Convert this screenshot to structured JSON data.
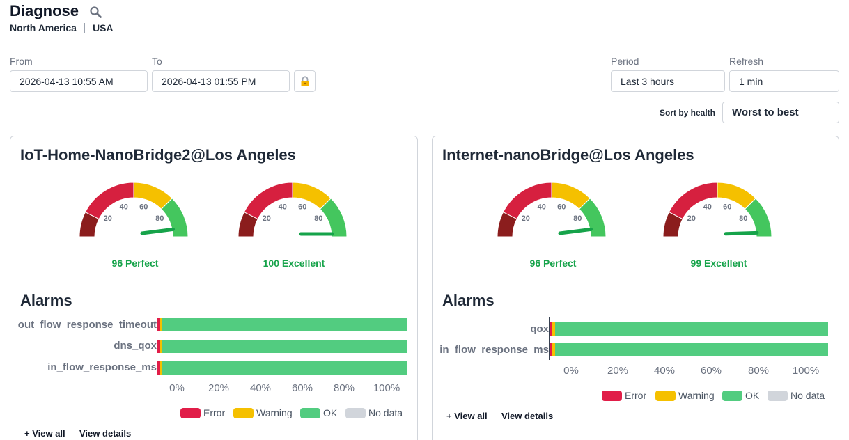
{
  "header": {
    "title": "Diagnose",
    "breadcrumb": [
      "North America",
      "USA"
    ]
  },
  "filters": {
    "from_label": "From",
    "from_value": "2026-04-13 10:55 AM",
    "to_label": "To",
    "to_value": "2026-04-13 01:55 PM",
    "period_label": "Period",
    "period_value": "Last 3 hours",
    "refresh_label": "Refresh",
    "refresh_value": "1 min",
    "sort_label": "Sort by health",
    "sort_value": "Worst to best"
  },
  "colors": {
    "error": "#e11d48",
    "warning": "#f5c000",
    "ok": "#52cc80",
    "nodata": "#d1d5db",
    "dark_red": "#8b1d1d",
    "gauge_red": "#d6203f",
    "gauge_green": "#44c65e",
    "needle": "#16a34a"
  },
  "gauge_ticks": [
    "20",
    "40",
    "60",
    "80"
  ],
  "bar_ticks": [
    "0%",
    "20%",
    "40%",
    "60%",
    "80%",
    "100%"
  ],
  "legend": [
    "Error",
    "Warning",
    "OK",
    "No data"
  ],
  "links": {
    "view_all": "+ View all",
    "view_details": "View details"
  },
  "panels": [
    {
      "title": "IoT-Home-NanoBridge2@Los Angeles",
      "gauges": [
        {
          "value": 96,
          "label": "96 Perfect"
        },
        {
          "value": 100,
          "label": "100 Excellent"
        }
      ],
      "alarms_title": "Alarms",
      "alarms": [
        {
          "name": "out_flow_response_timeout",
          "error": 1,
          "warning": 1,
          "ok": 98,
          "nodata": 0
        },
        {
          "name": "dns_qox",
          "error": 1,
          "warning": 1,
          "ok": 98,
          "nodata": 0
        },
        {
          "name": "in_flow_response_ms",
          "error": 1,
          "warning": 1,
          "ok": 98,
          "nodata": 0
        }
      ]
    },
    {
      "title": "Internet-nanoBridge@Los Angeles",
      "gauges": [
        {
          "value": 96,
          "label": "96 Perfect"
        },
        {
          "value": 99,
          "label": "99 Excellent"
        }
      ],
      "alarms_title": "Alarms",
      "alarms": [
        {
          "name": "qox",
          "error": 1,
          "warning": 1,
          "ok": 98,
          "nodata": 0
        },
        {
          "name": "in_flow_response_ms",
          "error": 1,
          "warning": 1,
          "ok": 98,
          "nodata": 0
        }
      ]
    }
  ]
}
